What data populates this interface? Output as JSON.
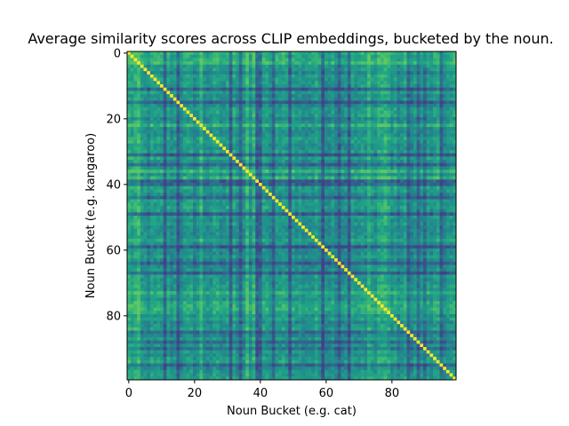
{
  "chart_data": {
    "type": "heatmap",
    "title": "Average similarity scores across CLIP embeddings, bucketed by the noun.",
    "xlabel": "Noun Bucket (e.g. cat)",
    "ylabel": "Noun Bucket (e.g. kangaroo)",
    "rows": 100,
    "cols": 100,
    "xlim": [
      0,
      99
    ],
    "ylim": [
      99,
      0
    ],
    "x_ticks": [
      0,
      20,
      40,
      60,
      80
    ],
    "x_tick_labels": [
      "0",
      "20",
      "40",
      "60",
      "80"
    ],
    "y_ticks": [
      0,
      20,
      40,
      60,
      80
    ],
    "y_tick_labels": [
      "0",
      "20",
      "40",
      "60",
      "80"
    ],
    "colormap": "viridis",
    "diagonal_value": 1.0,
    "off_diagonal_range": [
      0.2,
      0.75
    ],
    "low_similarity_buckets": [
      11,
      15,
      31,
      34,
      39,
      40,
      44,
      49,
      59,
      64,
      67,
      85,
      88,
      90,
      95
    ],
    "high_similarity_buckets": [
      0,
      1,
      2,
      3,
      22,
      32,
      36,
      38,
      47,
      73,
      74,
      76,
      77,
      78,
      79
    ],
    "grid": false,
    "legend": "none",
    "colors": {
      "frame": "#000000",
      "background": "#ffffff"
    }
  }
}
